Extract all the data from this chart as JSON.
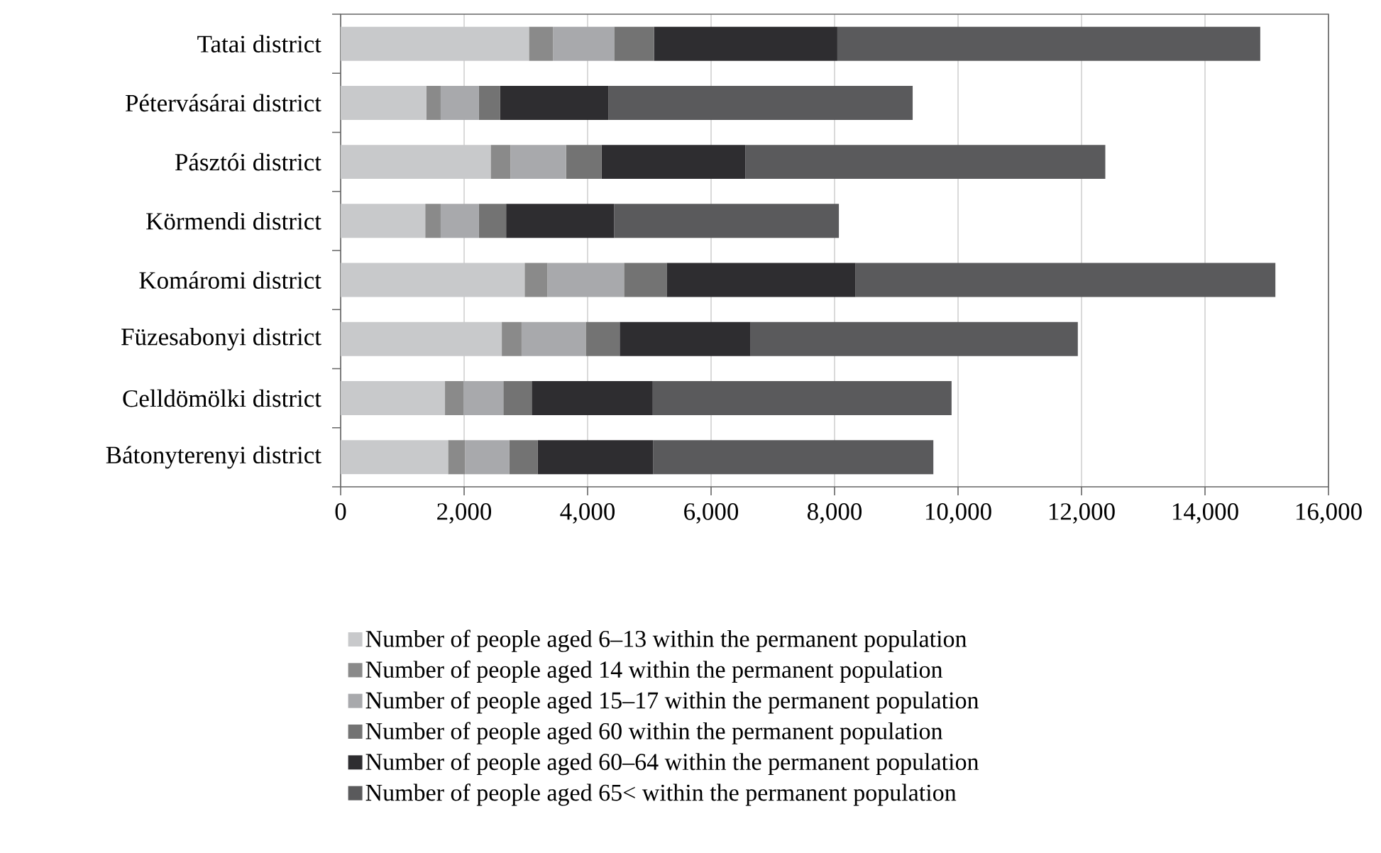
{
  "chart_data": {
    "type": "bar",
    "orientation": "horizontal",
    "stacked": true,
    "categories": [
      "Tatai district",
      "Pétervásárai district",
      "Pásztói district",
      "Körmendi district",
      "Komáromi district",
      "Füzesabonyi district",
      "Celldömölki district",
      "Bátonyterenyi district"
    ],
    "series": [
      {
        "name": "Number of people aged 6–13 within the permanent population",
        "color": "#c8c9cb",
        "values": [
          3050,
          1390,
          2430,
          1370,
          2980,
          2610,
          1690,
          1740
        ]
      },
      {
        "name": "Number of people aged 14 within the permanent population",
        "color": "#8a8a8a",
        "values": [
          390,
          230,
          320,
          250,
          370,
          320,
          300,
          275
        ]
      },
      {
        "name": "Number of people aged 15–17 within the permanent population",
        "color": "#a8a9ac",
        "values": [
          990,
          620,
          900,
          620,
          1240,
          1040,
          645,
          715
        ]
      },
      {
        "name": "Number of people aged 60 within the permanent population",
        "color": "#737373",
        "values": [
          645,
          345,
          575,
          440,
          690,
          550,
          460,
          460
        ]
      },
      {
        "name": "Number of people aged 60–64 within the permanent population",
        "color": "#2e2d30",
        "values": [
          2970,
          1750,
          2330,
          1750,
          3060,
          2120,
          1960,
          1870
        ]
      },
      {
        "name": "Number of people aged 65< within the permanent population",
        "color": "#5a5a5c",
        "values": [
          6850,
          4930,
          5830,
          3640,
          6800,
          5300,
          4840,
          4540
        ]
      }
    ],
    "xlim": [
      0,
      16000
    ],
    "xticks": [
      0,
      {
        "value": 2000,
        "label": "2,000"
      },
      {
        "value": 4000,
        "label": "4,000"
      },
      {
        "value": 6000,
        "label": "6,000"
      },
      {
        "value": 8000,
        "label": "8,000"
      },
      {
        "value": 10000,
        "label": "10,000"
      },
      {
        "value": 12000,
        "label": "12,000"
      },
      {
        "value": 14000,
        "label": "14,000"
      },
      {
        "value": 16000,
        "label": "16,000"
      }
    ],
    "grid": "x",
    "legend": "bottom"
  }
}
